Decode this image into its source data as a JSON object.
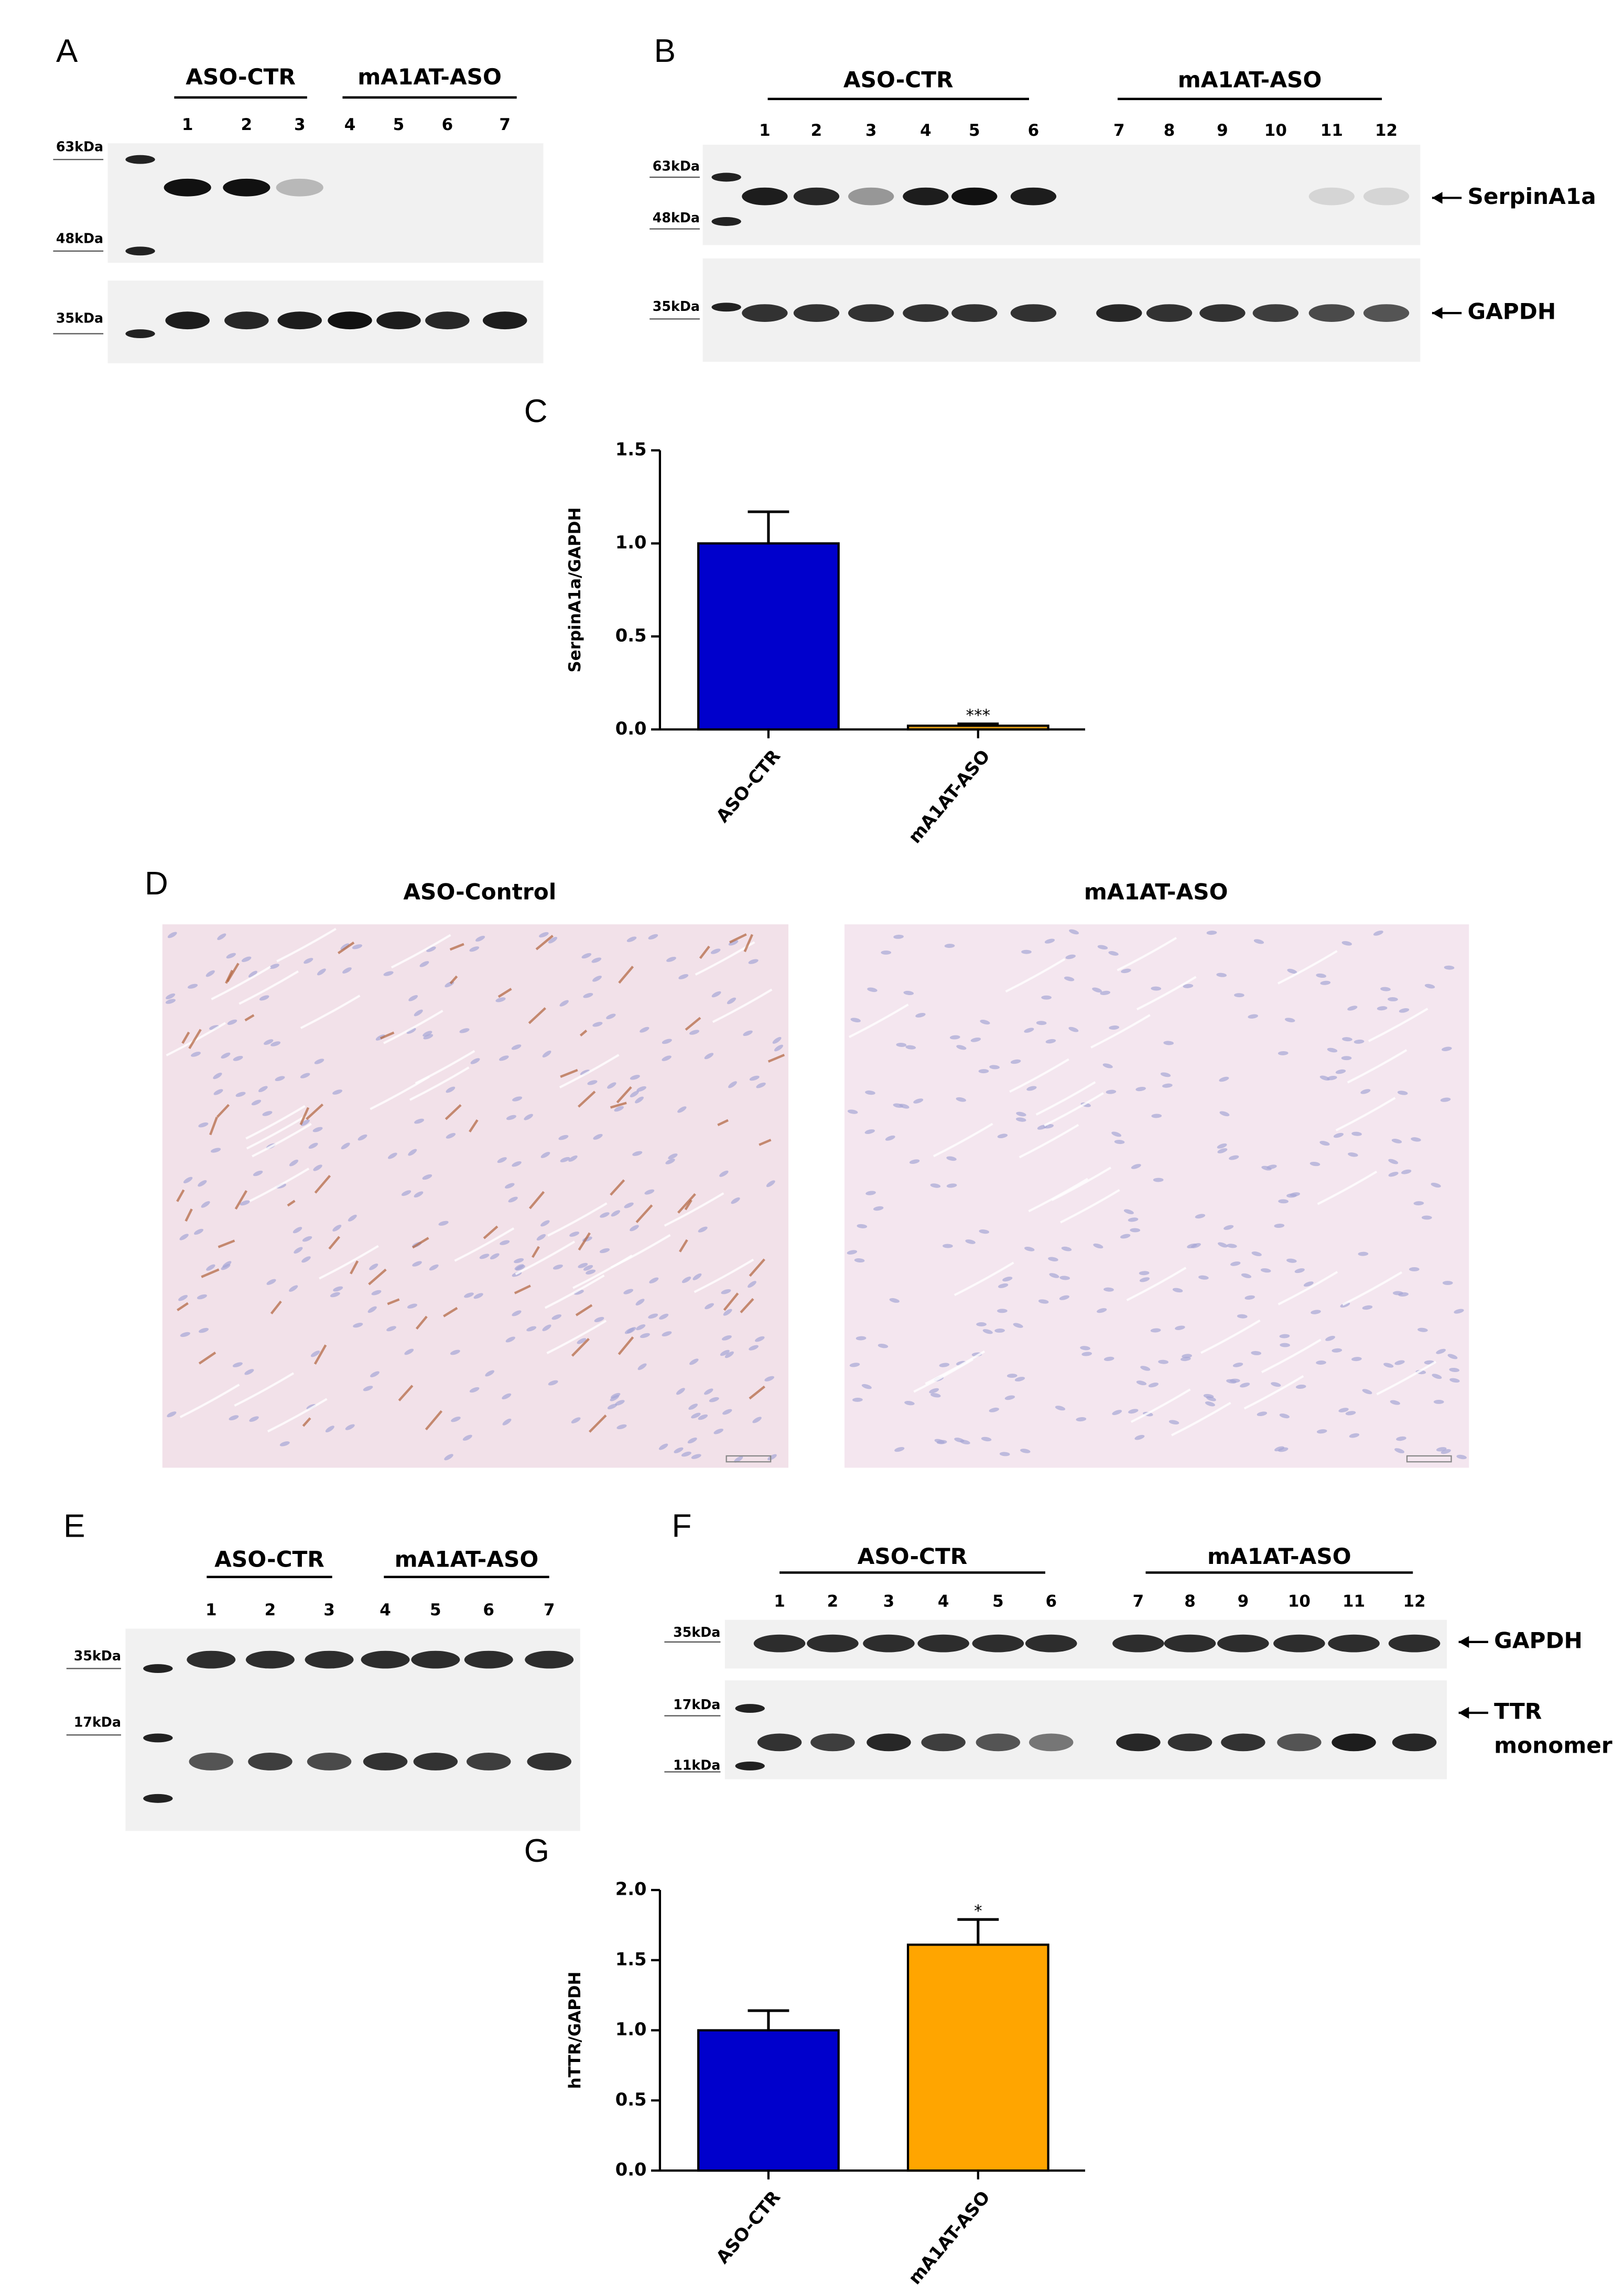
{
  "blots": [
    {
      "label": "A",
      "groups": [
        "ASO-CTR",
        "mA1AT-ASO"
      ],
      "lanes": [
        1,
        2,
        3,
        4,
        5,
        6,
        7
      ],
      "markers": [
        "63kDa",
        "48kDa",
        "35kDa"
      ],
      "targets": []
    },
    {
      "label": "B",
      "groups": [
        "ASO-CTR",
        "mA1AT-ASO"
      ],
      "lanes": [
        1,
        2,
        3,
        4,
        5,
        6,
        7,
        8,
        9,
        10,
        11,
        12
      ],
      "markers": [
        "63kDa",
        "48kDa",
        "35kDa"
      ],
      "targets": [
        [
          "SerpinA1a"
        ],
        [
          "GAPDH"
        ]
      ]
    },
    {
      "label": "E",
      "groups": [
        "ASO-CTR",
        "mA1AT-ASO"
      ],
      "lanes": [
        1,
        2,
        3,
        4,
        5,
        6,
        7
      ],
      "markers": [
        "35kDa",
        "17kDa"
      ],
      "targets": []
    },
    {
      "label": "F",
      "groups": [
        "ASO-CTR",
        "mA1AT-ASO"
      ],
      "lanes": [
        1,
        2,
        3,
        4,
        5,
        6,
        7,
        8,
        9,
        10,
        11,
        12
      ],
      "markers": [
        "35kDa",
        "17kDa",
        "11kDa"
      ],
      "targets": [
        [
          "GAPDH"
        ],
        [
          "TTR",
          "monomer"
        ]
      ]
    }
  ],
  "histology": {
    "label": "D",
    "titles": [
      "ASO-Control",
      "mA1AT-ASO"
    ]
  },
  "chart_data": [
    {
      "type": "bar",
      "label": "C",
      "ylabel": "SerpinA1a/GAPDH",
      "categories": [
        "ASO-CTR",
        "mA1AT-ASO"
      ],
      "values": [
        1.0,
        0.02
      ],
      "errors": [
        0.17,
        0.01
      ],
      "colors": [
        "#0000cc",
        "#e8a317"
      ],
      "value_annotations": [
        null,
        "***"
      ],
      "ylim": [
        0,
        1.5
      ],
      "yticks": [
        {
          "value": 0,
          "label": "0.0"
        },
        {
          "value": 0.5,
          "label": "0.5"
        },
        {
          "value": 1,
          "label": "1.0"
        },
        {
          "value": 1.5,
          "label": "1.5"
        }
      ]
    },
    {
      "type": "bar",
      "label": "G",
      "ylabel": "hTTR/GAPDH",
      "categories": [
        "ASO-CTR",
        "mA1AT-ASO"
      ],
      "values": [
        1.0,
        1.61
      ],
      "errors": [
        0.14,
        0.18
      ],
      "colors": [
        "#0000cc",
        "#ffa500"
      ],
      "value_annotations": [
        null,
        "*"
      ],
      "ylim": [
        0,
        2
      ],
      "yticks": [
        {
          "value": 0,
          "label": "0.0"
        },
        {
          "value": 0.5,
          "label": "0.5"
        },
        {
          "value": 1,
          "label": "1.0"
        },
        {
          "value": 1.5,
          "label": "1.5"
        },
        {
          "value": 2,
          "label": "2.0"
        }
      ]
    }
  ]
}
